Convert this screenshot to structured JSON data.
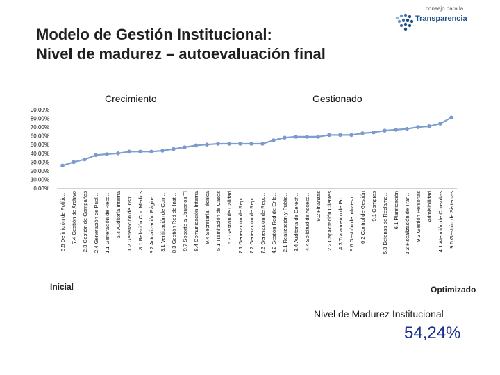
{
  "slide": {
    "title_line1": "Modelo de Gestión Institucional:",
    "title_line2": "Nivel de madurez – autoevaluación final",
    "logo_small": "consejo para la",
    "logo_big": "Transparencia",
    "summary_label": "Nivel de Madurez Institucional",
    "summary_value": "54,24%"
  },
  "colors": {
    "line": "#7f9fcf",
    "marker": "#7a9ad0",
    "axis": "#a6a6a6",
    "accent": "#1c2f8f"
  },
  "chart_data": {
    "type": "line",
    "title": "",
    "ylim": [
      0,
      90
    ],
    "yticks": [
      "0.00%",
      "10.00%",
      "20.00%",
      "30.00%",
      "40.00%",
      "50.00%",
      "60.00%",
      "70.00%",
      "80.00%",
      "90.00%"
    ],
    "section_labels": {
      "left": "Crecimiento",
      "right": "Gestionado",
      "bottom_left": "Inicial",
      "bottom_right": "Optimizado"
    },
    "categories": [
      "5.5 Definición de Polític…",
      "7.4 Gestión de Archivo",
      "2.3 Gestión de Campañas",
      "2.4 Generación de Publi…",
      "1.1 Generación de Reco…",
      "6.4 Auditoría Interna",
      "1.2 Generación de Instr…",
      "8.1 Relación Con Medios",
      "8.2 Actualización Página…",
      "3.1 Verificación de Cum…",
      "8.3 Gestión Red de Insti…",
      "9.7 Soporte a Usuarios TI",
      "8.4 Comunicación Interna",
      "9.4 Secretaría Técnica",
      "5.1 Tramitación de Casos",
      "6.3 Gestión de Calidad",
      "7.1 Generación de Repo…",
      "7.2 Generación de Repo…",
      "7.3 Generación de Repo…",
      "4.2 Gestión Red de Enla…",
      "2.1 Realización y Public…",
      "3.4 Auditoría de Derech…",
      "4.4 Solicitud de Acceso…",
      "9.2 Finanzas",
      "2.2 Capacitación Clientes",
      "4.3 Tratamiento de Pro…",
      "9.6 Gestión de Infraestr…",
      "6.2 Control de Gestión",
      "9.1 Compras",
      "5.3 Defensa de Reclamo…",
      "6.1 Planificación",
      "3.2 Fiscalización de Tran…",
      "9.3 Gestión Personas",
      "Admisibilidad",
      "4.1 Atención de Consultas",
      "9.5 Gestión de Sistemas"
    ],
    "values": [
      26,
      30,
      33,
      38,
      39,
      40,
      42,
      42,
      42,
      43,
      45,
      47,
      49,
      50,
      51,
      51,
      51,
      51,
      51,
      55,
      58,
      59,
      59,
      59,
      61,
      61,
      61,
      63,
      64,
      66,
      67,
      68,
      70,
      71,
      74,
      81
    ]
  }
}
